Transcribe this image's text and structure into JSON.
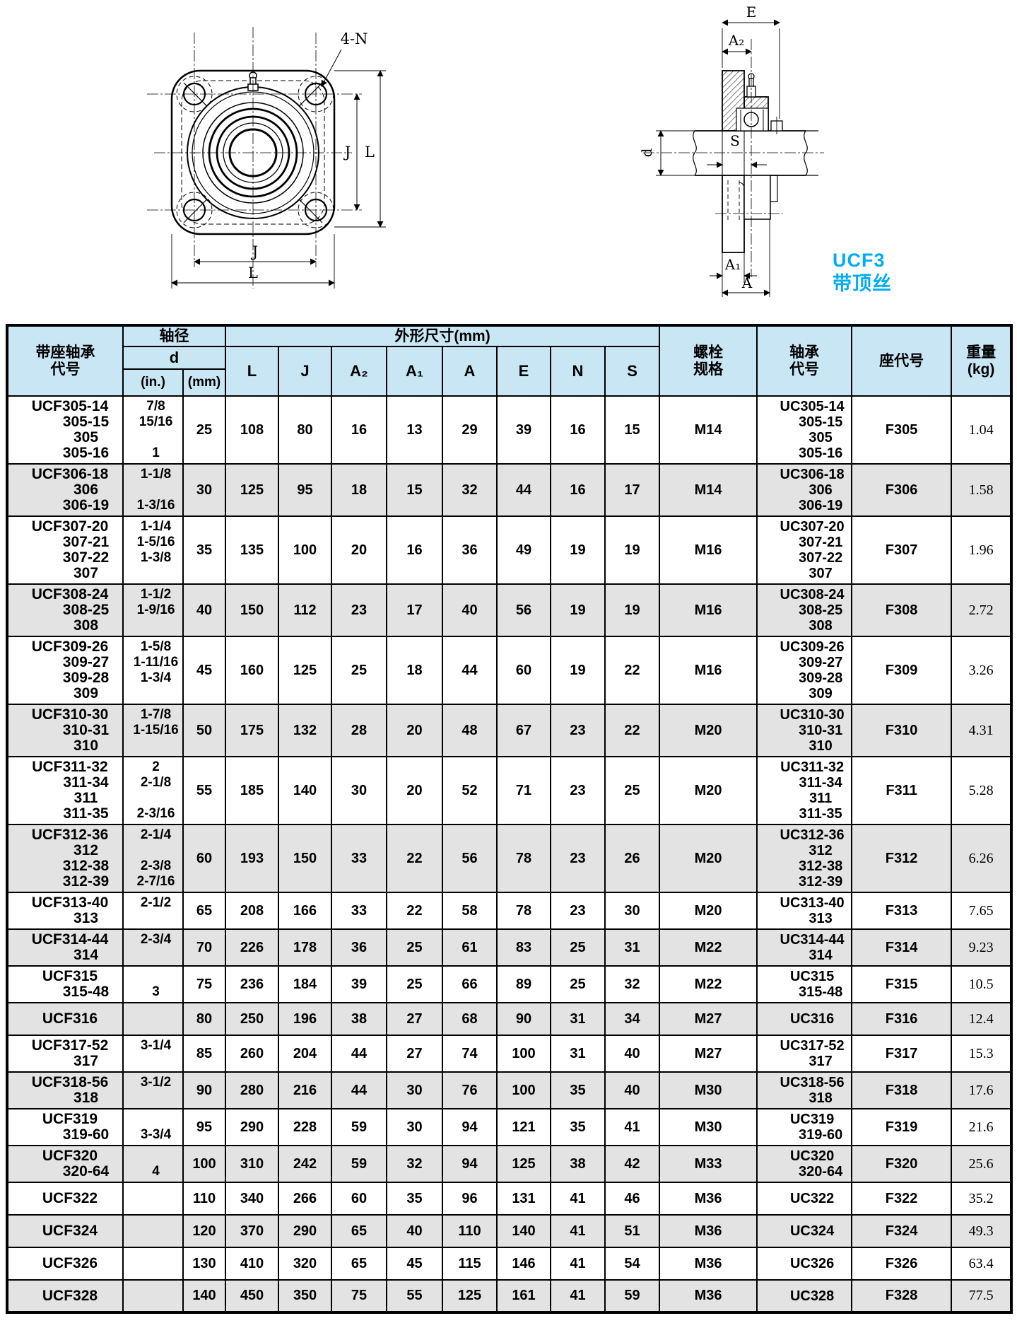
{
  "colors": {
    "accent": "#00AEEF",
    "header_bg": "#c9e6f4",
    "row_shade": "#e3e3e3",
    "line": "#000000"
  },
  "drawings": {
    "front_view": {
      "callout": "4-N",
      "dim_j": "J",
      "dim_l": "L"
    },
    "section_view": {
      "dim_e": "E",
      "dim_a2": "A₂",
      "dim_s": "S",
      "dim_d": "d",
      "dim_a1": "A₁",
      "dim_a": "A"
    },
    "series_label": {
      "line1": "UCF3",
      "line2": "带顶丝"
    }
  },
  "table": {
    "header": {
      "unit_code": "带座轴承\n代号",
      "shaft_dia": "轴径",
      "d": "d",
      "in": "(in.)",
      "mm": "(mm)",
      "dims_group": "外形尺寸(mm)",
      "dims": [
        "L",
        "J",
        "A₂",
        "A₁",
        "A",
        "E",
        "N",
        "S"
      ],
      "bolt": "螺栓\n规格",
      "bearing": "轴承\n代号",
      "housing": "座代号",
      "weight": "重量\n(kg)"
    },
    "rows": [
      {
        "codes": [
          "UCF305-14",
          "305-15",
          "305",
          "305-16"
        ],
        "in": [
          "7/8",
          "15/16",
          "",
          "1"
        ],
        "mm": "25",
        "mm_va": "bottom",
        "dims": [
          "108",
          "80",
          "16",
          "13",
          "29",
          "39",
          "16",
          "15"
        ],
        "bolt": "M14",
        "bearing": [
          "UC305-14",
          "305-15",
          "305",
          "305-16"
        ],
        "housing": "F305",
        "weight": "1.04",
        "wt_va": "center",
        "shade": false
      },
      {
        "codes": [
          "UCF306-18",
          "306",
          "306-19"
        ],
        "in": [
          "1-1/8",
          "",
          "1-3/16"
        ],
        "mm": "30",
        "mm_va": "center",
        "dims": [
          "125",
          "95",
          "18",
          "15",
          "32",
          "44",
          "16",
          "17"
        ],
        "bolt": "M14",
        "bearing": [
          "UC306-18",
          "306",
          "306-19"
        ],
        "housing": "F306",
        "weight": "1.58",
        "wt_va": "center",
        "shade": true
      },
      {
        "codes": [
          "UCF307-20",
          "307-21",
          "307-22",
          "307"
        ],
        "in": [
          "1-1/4",
          "1-5/16",
          "1-3/8",
          ""
        ],
        "mm": "35",
        "mm_va": "bottom",
        "dims": [
          "135",
          "100",
          "20",
          "16",
          "36",
          "49",
          "19",
          "19"
        ],
        "bolt": "M16",
        "bearing": [
          "UC307-20",
          "307-21",
          "307-22",
          "307"
        ],
        "housing": "F307",
        "weight": "1.96",
        "wt_va": "bottom",
        "shade": false
      },
      {
        "codes": [
          "UCF308-24",
          "308-25",
          "308"
        ],
        "in": [
          "1-1/2",
          "1-9/16",
          ""
        ],
        "mm": "40",
        "mm_va": "bottom",
        "dims": [
          "150",
          "112",
          "23",
          "17",
          "40",
          "56",
          "19",
          "19"
        ],
        "bolt": "M16",
        "bearing": [
          "UC308-24",
          "308-25",
          "308"
        ],
        "housing": "F308",
        "weight": "2.72",
        "wt_va": "bottom",
        "shade": true
      },
      {
        "codes": [
          "UCF309-26",
          "309-27",
          "309-28",
          "309"
        ],
        "in": [
          "1-5/8",
          "1-11/16",
          "1-3/4",
          ""
        ],
        "mm": "45",
        "mm_va": "bottom",
        "dims": [
          "160",
          "125",
          "25",
          "18",
          "44",
          "60",
          "19",
          "22"
        ],
        "bolt": "M16",
        "bearing": [
          "UC309-26",
          "309-27",
          "309-28",
          "309"
        ],
        "housing": "F309",
        "weight": "3.26",
        "wt_va": "bottom",
        "shade": false
      },
      {
        "codes": [
          "UCF310-30",
          "310-31",
          "310"
        ],
        "in": [
          "1-7/8",
          "1-15/16",
          ""
        ],
        "mm": "50",
        "mm_va": "bottom",
        "dims": [
          "175",
          "132",
          "28",
          "20",
          "48",
          "67",
          "23",
          "22"
        ],
        "bolt": "M20",
        "bearing": [
          "UC310-30",
          "310-31",
          "310"
        ],
        "housing": "F310",
        "weight": "4.31",
        "wt_va": "bottom",
        "shade": true
      },
      {
        "codes": [
          "UCF311-32",
          "311-34",
          "311",
          "311-35"
        ],
        "in": [
          "2",
          "2-1/8",
          "",
          "2-3/16"
        ],
        "mm": "55",
        "mm_va": "center",
        "dims": [
          "185",
          "140",
          "30",
          "20",
          "52",
          "71",
          "23",
          "25"
        ],
        "bolt": "M20",
        "bearing": [
          "UC311-32",
          "311-34",
          "311",
          "311-35"
        ],
        "housing": "F311",
        "weight": "5.28",
        "wt_va": "center",
        "shade": false
      },
      {
        "codes": [
          "UCF312-36",
          "312",
          "312-38",
          "312-39"
        ],
        "in": [
          "2-1/4",
          "",
          "2-3/8",
          "2-7/16"
        ],
        "mm": "60",
        "mm_va": "top",
        "dims": [
          "193",
          "150",
          "33",
          "22",
          "56",
          "78",
          "23",
          "26"
        ],
        "bolt": "M20",
        "bearing": [
          "UC312-36",
          "312",
          "312-38",
          "312-39"
        ],
        "housing": "F312",
        "weight": "6.26",
        "wt_va": "top",
        "shade": true
      },
      {
        "codes": [
          "UCF313-40",
          "313"
        ],
        "in": [
          "2-1/2",
          ""
        ],
        "mm": "65",
        "mm_va": "bottom",
        "dims": [
          "208",
          "166",
          "33",
          "22",
          "58",
          "78",
          "23",
          "30"
        ],
        "bolt": "M20",
        "bearing": [
          "UC313-40",
          "313"
        ],
        "housing": "F313",
        "weight": "7.65",
        "wt_va": "bottom",
        "shade": false
      },
      {
        "codes": [
          "UCF314-44",
          "314"
        ],
        "in": [
          "2-3/4",
          ""
        ],
        "mm": "70",
        "mm_va": "bottom",
        "dims": [
          "226",
          "178",
          "36",
          "25",
          "61",
          "83",
          "25",
          "31"
        ],
        "bolt": "M22",
        "bearing": [
          "UC314-44",
          "314"
        ],
        "housing": "F314",
        "weight": "9.23",
        "wt_va": "bottom",
        "shade": true
      },
      {
        "codes": [
          "UCF315",
          "315-48"
        ],
        "in": [
          "",
          "3"
        ],
        "mm": "75",
        "mm_va": "top",
        "dims": [
          "236",
          "184",
          "39",
          "25",
          "66",
          "89",
          "25",
          "32"
        ],
        "bolt": "M22",
        "bearing": [
          "UC315",
          "315-48"
        ],
        "housing": "F315",
        "weight": "10.5",
        "wt_va": "top",
        "shade": false
      },
      {
        "codes": [
          "UCF316"
        ],
        "in": [
          ""
        ],
        "mm": "80",
        "mm_va": "center",
        "dims": [
          "250",
          "196",
          "38",
          "27",
          "68",
          "90",
          "31",
          "34"
        ],
        "bolt": "M27",
        "bearing": [
          "UC316"
        ],
        "housing": "F316",
        "weight": "12.4",
        "wt_va": "center",
        "shade": true
      },
      {
        "codes": [
          "UCF317-52",
          "317"
        ],
        "in": [
          "3-1/4",
          ""
        ],
        "mm": "85",
        "mm_va": "bottom",
        "dims": [
          "260",
          "204",
          "44",
          "27",
          "74",
          "100",
          "31",
          "40"
        ],
        "bolt": "M27",
        "bearing": [
          "UC317-52",
          "317"
        ],
        "housing": "F317",
        "weight": "15.3",
        "wt_va": "bottom",
        "shade": false
      },
      {
        "codes": [
          "UCF318-56",
          "318"
        ],
        "in": [
          "3-1/2",
          ""
        ],
        "mm": "90",
        "mm_va": "bottom",
        "dims": [
          "280",
          "216",
          "44",
          "30",
          "76",
          "100",
          "35",
          "40"
        ],
        "bolt": "M30",
        "bearing": [
          "UC318-56",
          "318"
        ],
        "housing": "F318",
        "weight": "17.6",
        "wt_va": "bottom",
        "shade": true
      },
      {
        "codes": [
          "UCF319",
          "319-60"
        ],
        "in": [
          "",
          "3-3/4"
        ],
        "mm": "95",
        "mm_va": "top",
        "dims": [
          "290",
          "228",
          "59",
          "30",
          "94",
          "121",
          "35",
          "41"
        ],
        "bolt": "M30",
        "bearing": [
          "UC319",
          "319-60"
        ],
        "housing": "F319",
        "weight": "21.6",
        "wt_va": "top",
        "shade": false
      },
      {
        "codes": [
          "UCF320",
          "320-64"
        ],
        "in": [
          "",
          "4"
        ],
        "mm": "100",
        "mm_va": "top",
        "dims": [
          "310",
          "242",
          "59",
          "32",
          "94",
          "125",
          "38",
          "42"
        ],
        "bolt": "M33",
        "bearing": [
          "UC320",
          "320-64"
        ],
        "housing": "F320",
        "weight": "25.6",
        "wt_va": "top",
        "shade": true
      },
      {
        "codes": [
          "UCF322"
        ],
        "in": [
          ""
        ],
        "mm": "110",
        "mm_va": "center",
        "dims": [
          "340",
          "266",
          "60",
          "35",
          "96",
          "131",
          "41",
          "46"
        ],
        "bolt": "M36",
        "bearing": [
          "UC322"
        ],
        "housing": "F322",
        "weight": "35.2",
        "wt_va": "center",
        "shade": false
      },
      {
        "codes": [
          "UCF324"
        ],
        "in": [
          ""
        ],
        "mm": "120",
        "mm_va": "center",
        "dims": [
          "370",
          "290",
          "65",
          "40",
          "110",
          "140",
          "41",
          "51"
        ],
        "bolt": "M36",
        "bearing": [
          "UC324"
        ],
        "housing": "F324",
        "weight": "49.3",
        "wt_va": "center",
        "shade": true
      },
      {
        "codes": [
          "UCF326"
        ],
        "in": [
          ""
        ],
        "mm": "130",
        "mm_va": "center",
        "dims": [
          "410",
          "320",
          "65",
          "45",
          "115",
          "146",
          "41",
          "54"
        ],
        "bolt": "M36",
        "bearing": [
          "UC326"
        ],
        "housing": "F326",
        "weight": "63.4",
        "wt_va": "center",
        "shade": false
      },
      {
        "codes": [
          "UCF328"
        ],
        "in": [
          ""
        ],
        "mm": "140",
        "mm_va": "center",
        "dims": [
          "450",
          "350",
          "75",
          "55",
          "125",
          "161",
          "41",
          "59"
        ],
        "bolt": "M36",
        "bearing": [
          "UC328"
        ],
        "housing": "F328",
        "weight": "77.5",
        "wt_va": "center",
        "shade": true
      }
    ]
  }
}
